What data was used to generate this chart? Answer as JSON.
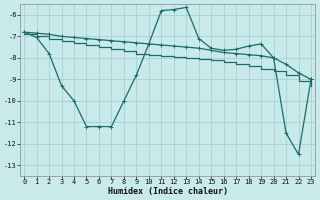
{
  "xlabel": "Humidex (Indice chaleur)",
  "bg_color": "#c8eaea",
  "grid_color": "#aacfcf",
  "line_color": "#1a6b6b",
  "xlim": [
    -0.3,
    23.3
  ],
  "ylim": [
    -13.5,
    -5.5
  ],
  "yticks": [
    -13,
    -12,
    -11,
    -10,
    -9,
    -8,
    -7,
    -6
  ],
  "xticks": [
    0,
    1,
    2,
    3,
    4,
    5,
    6,
    7,
    8,
    9,
    10,
    11,
    12,
    13,
    14,
    15,
    16,
    17,
    18,
    19,
    20,
    21,
    22,
    23
  ],
  "line1_x": [
    0,
    1,
    2,
    3,
    4,
    5,
    6,
    7,
    8,
    9,
    10,
    11,
    12,
    13,
    14,
    15,
    16,
    17,
    18,
    19,
    20,
    21,
    22,
    23
  ],
  "line1_y": [
    -6.8,
    -6.85,
    -6.9,
    -7.0,
    -7.05,
    -7.1,
    -7.15,
    -7.2,
    -7.25,
    -7.3,
    -7.35,
    -7.4,
    -7.45,
    -7.5,
    -7.55,
    -7.65,
    -7.75,
    -7.8,
    -7.85,
    -7.9,
    -8.0,
    -8.3,
    -8.7,
    -9.0
  ],
  "line2_x": [
    0,
    1,
    2,
    3,
    4,
    5,
    6,
    7,
    8,
    9,
    10,
    11,
    12,
    13,
    14,
    15,
    16,
    17,
    18,
    19,
    20,
    21,
    22,
    23
  ],
  "line2_y": [
    -6.9,
    -7.0,
    -7.1,
    -7.2,
    -7.3,
    -7.4,
    -7.5,
    -7.6,
    -7.7,
    -7.8,
    -7.85,
    -7.9,
    -7.95,
    -8.0,
    -8.05,
    -8.1,
    -8.2,
    -8.3,
    -8.4,
    -8.5,
    -8.6,
    -8.8,
    -9.1,
    -9.3
  ],
  "line3_x": [
    0,
    1,
    2,
    3,
    4,
    5,
    6,
    7,
    8,
    9,
    10,
    11,
    12,
    13,
    14,
    15,
    16,
    17,
    18,
    19,
    20,
    21,
    22,
    23
  ],
  "line3_y": [
    -6.8,
    -7.05,
    -7.8,
    -9.3,
    -10.0,
    -11.2,
    -11.2,
    -11.2,
    -10.0,
    -8.8,
    -7.35,
    -5.8,
    -5.75,
    -5.65,
    -7.1,
    -7.55,
    -7.65,
    -7.6,
    -7.45,
    -7.35,
    -8.0,
    -11.5,
    -12.5,
    -9.0
  ]
}
